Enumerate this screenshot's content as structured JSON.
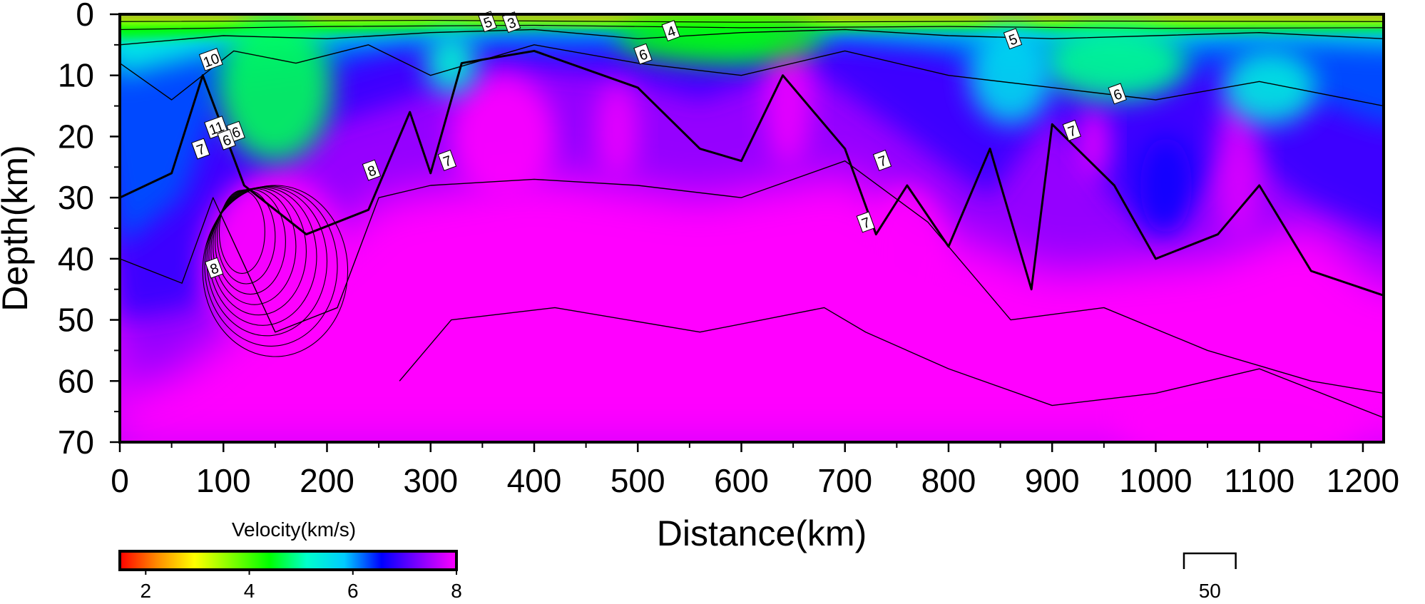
{
  "chart_data": {
    "type": "heatmap",
    "title": "",
    "xlabel": "Distance(km)",
    "ylabel": "Depth(km)",
    "xlim": [
      0,
      1220
    ],
    "ylim": [
      70,
      0
    ],
    "x_ticks": [
      "0",
      "100",
      "200",
      "300",
      "400",
      "500",
      "600",
      "700",
      "800",
      "900",
      "1000",
      "1100",
      "1200"
    ],
    "y_ticks": [
      "0",
      "10",
      "20",
      "30",
      "40",
      "50",
      "60",
      "70"
    ],
    "colorbar": {
      "label": "Velocity(km/s)",
      "range": [
        1.5,
        8
      ],
      "ticks": [
        "2",
        "4",
        "6",
        "8"
      ],
      "colors": [
        "#ff0000",
        "#ff8c00",
        "#ffff00",
        "#7fff00",
        "#00ff00",
        "#00ffcc",
        "#00ccff",
        "#0000ff",
        "#8000ff",
        "#ff00ff"
      ]
    },
    "contour_labels": [
      {
        "text": "5",
        "x": 355,
        "y": 1.2
      },
      {
        "text": "3",
        "x": 378,
        "y": 1.3
      },
      {
        "text": "4",
        "x": 532,
        "y": 2.7
      },
      {
        "text": "6",
        "x": 505,
        "y": 6.5
      },
      {
        "text": "5",
        "x": 862,
        "y": 4
      },
      {
        "text": "10",
        "x": 88,
        "y": 7.4
      },
      {
        "text": "6",
        "x": 963,
        "y": 13
      },
      {
        "text": "11",
        "x": 93,
        "y": 18.5
      },
      {
        "text": "6",
        "x": 112,
        "y": 19.2
      },
      {
        "text": "6",
        "x": 103,
        "y": 20.5
      },
      {
        "text": "7",
        "x": 78,
        "y": 22
      },
      {
        "text": "7",
        "x": 919,
        "y": 19
      },
      {
        "text": "7",
        "x": 316,
        "y": 23.9
      },
      {
        "text": "7",
        "x": 736,
        "y": 23.9
      },
      {
        "text": "8",
        "x": 243,
        "y": 25.5
      },
      {
        "text": "7",
        "x": 720,
        "y": 34
      },
      {
        "text": "8",
        "x": 91,
        "y": 41.5
      }
    ],
    "scale_bar": {
      "label": "50",
      "length_km": 50
    }
  }
}
